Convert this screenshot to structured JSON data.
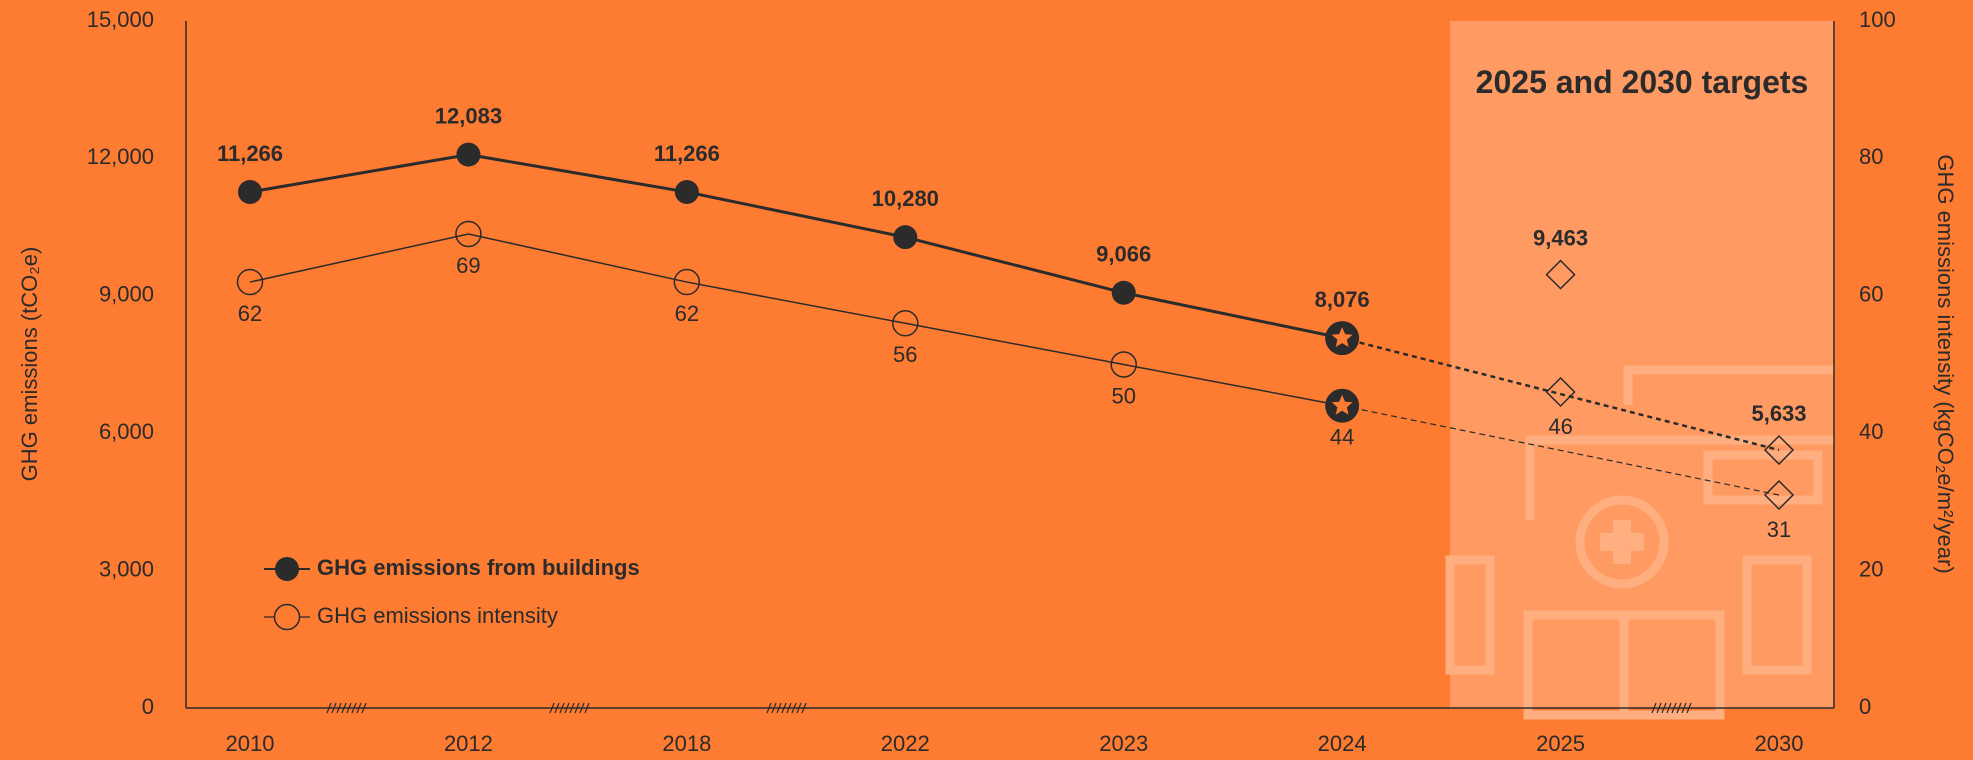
{
  "chart_data": {
    "type": "line",
    "categories": [
      "2010",
      "2012",
      "2018",
      "2022",
      "2023",
      "2024",
      "2025",
      "2030"
    ],
    "ylabel": "GHG emissions (tCO₂e)",
    "y2label": "GHG emissions intensity (kgCO₂e/m²/year)",
    "ylim": [
      0,
      15000
    ],
    "yticks": [
      {
        "value": 0,
        "label": "0"
      },
      {
        "value": 3000,
        "label": "3,000"
      },
      {
        "value": 6000,
        "label": "6,000"
      },
      {
        "value": 9000,
        "label": "9,000"
      },
      {
        "value": 12000,
        "label": "12,000"
      },
      {
        "value": 15000,
        "label": "15,000"
      }
    ],
    "y2lim": [
      0,
      100
    ],
    "y2ticks": [
      0,
      20,
      40,
      60,
      80,
      100
    ],
    "annotation": "2025 and 2030 targets",
    "series": [
      {
        "name": "GHG emissions from buildings",
        "color": "#2b2b2b",
        "axis": "y",
        "values": [
          11266,
          12083,
          11266,
          10280,
          9066,
          8076,
          null,
          null
        ],
        "value_labels": [
          "11,266",
          "12,083",
          "11,266",
          "10,280",
          "9,066",
          "8,076",
          null,
          null
        ],
        "targets": [
          null,
          null,
          null,
          null,
          null,
          null,
          9463,
          5633
        ],
        "target_labels": [
          null,
          null,
          null,
          null,
          null,
          null,
          "9,463",
          "5,633"
        ]
      },
      {
        "name": "GHG emissions intensity",
        "color": "#2b2b2b",
        "axis": "y2",
        "values": [
          62,
          69,
          62,
          56,
          50,
          44,
          null,
          null
        ],
        "targets": [
          null,
          null,
          null,
          null,
          null,
          null,
          46,
          31
        ]
      }
    ]
  }
}
